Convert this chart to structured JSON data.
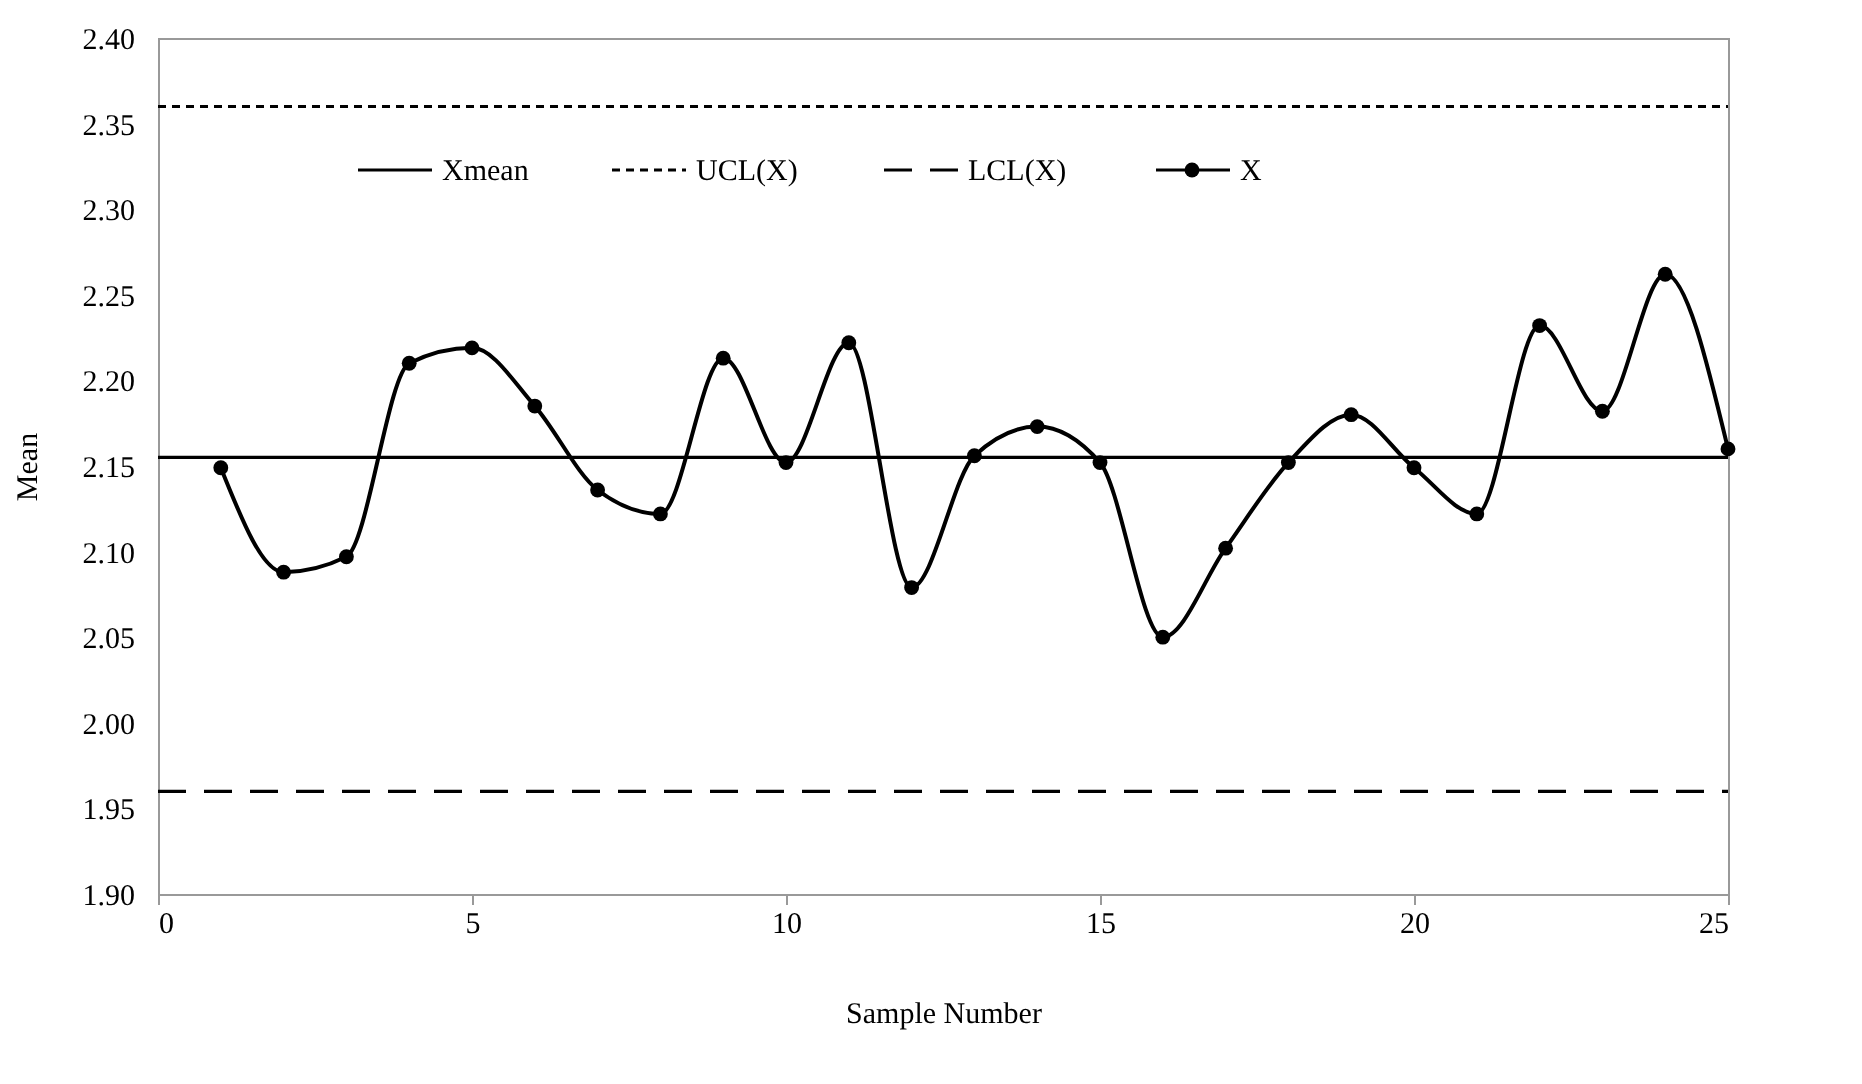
{
  "chart_data": {
    "type": "line",
    "xlabel": "Sample Number",
    "ylabel": "Mean",
    "x": [
      1,
      2,
      3,
      4,
      5,
      6,
      7,
      8,
      9,
      10,
      11,
      12,
      13,
      14,
      15,
      16,
      17,
      18,
      19,
      20,
      21,
      22,
      23,
      24,
      25
    ],
    "series": [
      {
        "name": "X",
        "color": "#000000",
        "values": [
          2.149,
          2.088,
          2.097,
          2.21,
          2.219,
          2.185,
          2.136,
          2.122,
          2.213,
          2.152,
          2.222,
          2.079,
          2.156,
          2.173,
          2.152,
          2.05,
          2.102,
          2.152,
          2.18,
          2.149,
          2.122,
          2.232,
          2.182,
          2.262,
          2.16
        ]
      }
    ],
    "ref_lines": [
      {
        "axis": "y",
        "value": 2.155,
        "label": "Xmean",
        "line_style": "solid",
        "color": "#000000"
      },
      {
        "axis": "y",
        "value": 2.36,
        "label": "UCL(X)",
        "line_style": "dotted",
        "color": "#000000"
      },
      {
        "axis": "y",
        "value": 1.96,
        "label": "LCL(X)",
        "line_style": "dashed",
        "color": "#000000"
      }
    ],
    "xlim": [
      0,
      25
    ],
    "xticks": [
      0,
      5,
      10,
      15,
      20,
      25
    ],
    "ylim": [
      1.9,
      2.4
    ],
    "yticks": [
      {
        "value": 1.9,
        "label": "1.90"
      },
      {
        "value": 1.95,
        "label": "1.95"
      },
      {
        "value": 2.0,
        "label": "2.00"
      },
      {
        "value": 2.05,
        "label": "2.05"
      },
      {
        "value": 2.1,
        "label": "2.10"
      },
      {
        "value": 2.15,
        "label": "2.15"
      },
      {
        "value": 2.2,
        "label": "2.20"
      },
      {
        "value": 2.25,
        "label": "2.25"
      },
      {
        "value": 2.3,
        "label": "2.30"
      },
      {
        "value": 2.35,
        "label": "2.35"
      },
      {
        "value": 2.4,
        "label": "2.40"
      }
    ],
    "grid": false,
    "legend": "top",
    "marker": "circle",
    "line_style": "solid"
  }
}
